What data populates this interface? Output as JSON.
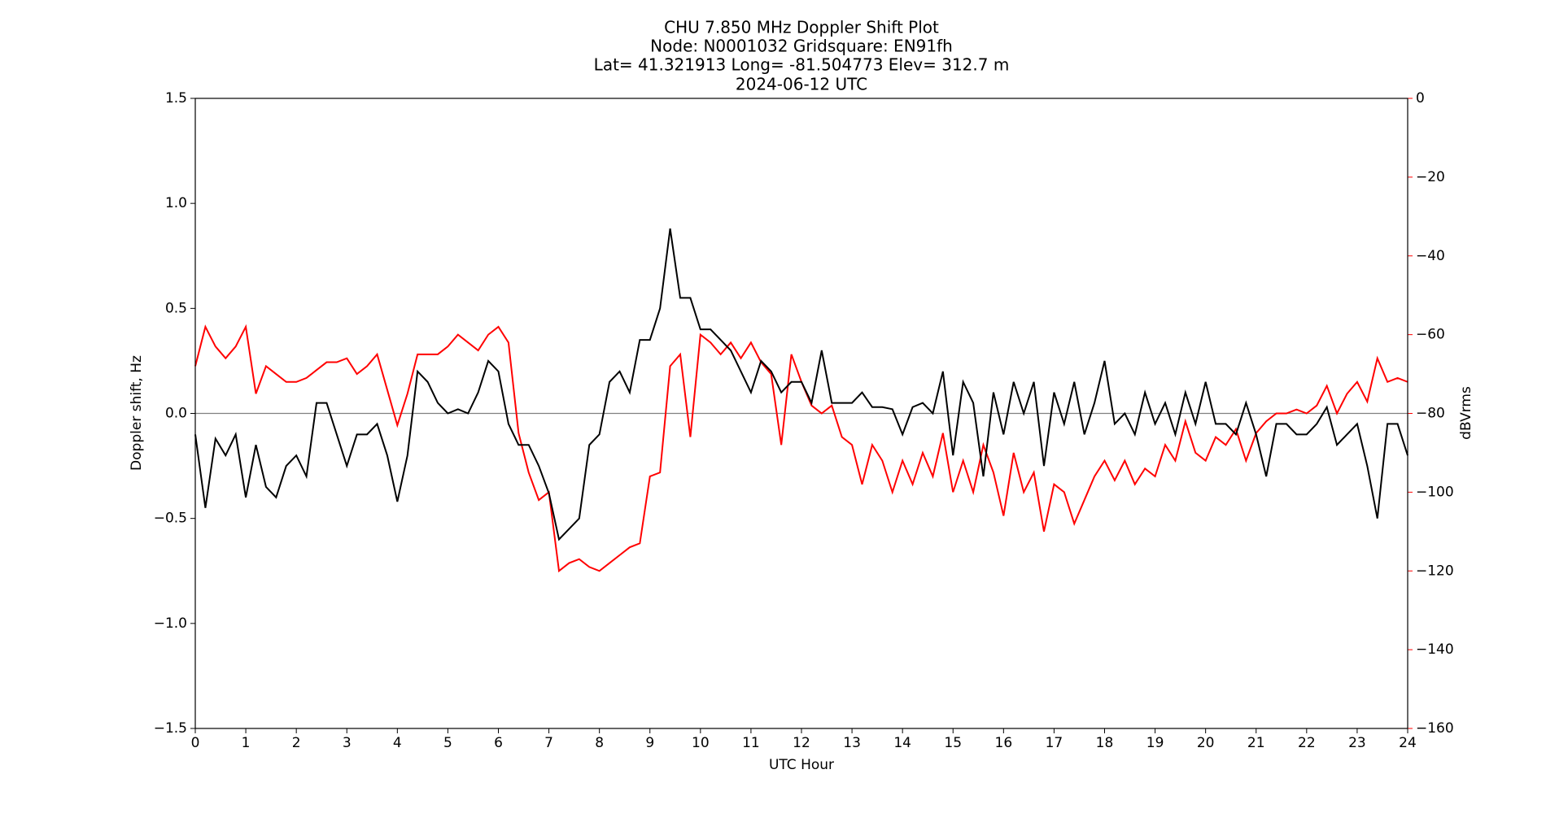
{
  "chart_data": {
    "type": "line",
    "title_lines": [
      "CHU 7.850 MHz Doppler Shift Plot",
      "Node:  N0001032      Gridsquare:  EN91fh",
      "Lat= 41.321913    Long= -81.504773    Elev= 312.7 m",
      "2024-06-12  UTC"
    ],
    "xlabel": "UTC Hour",
    "ylabel": "Doppler shift, Hz",
    "y2label": "dBVrms",
    "x": [
      0,
      0.2,
      0.4,
      0.6,
      0.8,
      1,
      1.2,
      1.4,
      1.6,
      1.8,
      2,
      2.2,
      2.4,
      2.6,
      2.8,
      3,
      3.2,
      3.4,
      3.6,
      3.8,
      4,
      4.2,
      4.4,
      4.6,
      4.8,
      5,
      5.2,
      5.4,
      5.6,
      5.8,
      6,
      6.2,
      6.4,
      6.6,
      6.8,
      7,
      7.2,
      7.4,
      7.6,
      7.8,
      8,
      8.2,
      8.4,
      8.6,
      8.8,
      9,
      9.2,
      9.4,
      9.6,
      9.8,
      10,
      10.2,
      10.4,
      10.6,
      10.8,
      11,
      11.2,
      11.4,
      11.6,
      11.8,
      12,
      12.2,
      12.4,
      12.6,
      12.8,
      13,
      13.2,
      13.4,
      13.6,
      13.8,
      14,
      14.2,
      14.4,
      14.6,
      14.8,
      15,
      15.2,
      15.4,
      15.6,
      15.8,
      16,
      16.2,
      16.4,
      16.6,
      16.8,
      17,
      17.2,
      17.4,
      17.6,
      17.8,
      18,
      18.2,
      18.4,
      18.6,
      18.8,
      19,
      19.2,
      19.4,
      19.6,
      19.8,
      20,
      20.2,
      20.4,
      20.6,
      20.8,
      21,
      21.2,
      21.4,
      21.6,
      21.8,
      22,
      22.2,
      22.4,
      22.6,
      22.8,
      23,
      23.2,
      23.4,
      23.6,
      23.8,
      24
    ],
    "series": [
      {
        "color": "#000000",
        "axis": "y",
        "values": [
          -0.1,
          -0.45,
          -0.12,
          -0.2,
          -0.1,
          -0.4,
          -0.15,
          -0.35,
          -0.4,
          -0.25,
          -0.2,
          -0.3,
          0.05,
          0.05,
          -0.1,
          -0.25,
          -0.1,
          -0.1,
          -0.05,
          -0.2,
          -0.42,
          -0.2,
          0.2,
          0.15,
          0.05,
          0,
          0.02,
          0,
          0.1,
          0.25,
          0.2,
          -0.05,
          -0.15,
          -0.15,
          -0.25,
          -0.38,
          -0.6,
          -0.55,
          -0.5,
          -0.15,
          -0.1,
          0.15,
          0.2,
          0.1,
          0.35,
          0.35,
          0.5,
          0.88,
          0.55,
          0.55,
          0.4,
          0.4,
          0.35,
          0.3,
          0.2,
          0.1,
          0.25,
          0.2,
          0.1,
          0.15,
          0.15,
          0.05,
          0.3,
          0.05,
          0.05,
          0.05,
          0.1,
          0.03,
          0.03,
          0.02,
          -0.1,
          0.03,
          0.05,
          0,
          0.2,
          -0.2,
          0.15,
          0.05,
          -0.3,
          0.1,
          -0.1,
          0.15,
          0,
          0.15,
          -0.25,
          0.1,
          -0.05,
          0.15,
          -0.1,
          0.05,
          0.25,
          -0.05,
          0,
          -0.1,
          0.1,
          -0.05,
          0.05,
          -0.1,
          0.1,
          -0.05,
          0.15,
          -0.05,
          -0.05,
          -0.1,
          0.05,
          -0.1,
          -0.3,
          -0.05,
          -0.05,
          -0.1,
          -0.1,
          -0.05,
          0.03,
          -0.15,
          -0.1,
          -0.05,
          -0.25,
          -0.5,
          -0.05,
          -0.05,
          -0.2
        ]
      },
      {
        "color": "#ff0000",
        "axis": "y2",
        "values": [
          -68,
          -58,
          -63,
          -66,
          -63,
          -58,
          -75,
          -68,
          -70,
          -72,
          -72,
          -71,
          -69,
          -67,
          -67,
          -66,
          -70,
          -68,
          -65,
          -74,
          -83,
          -75,
          -65,
          -65,
          -65,
          -63,
          -60,
          -62,
          -64,
          -60,
          -58,
          -62,
          -85,
          -95,
          -102,
          -100,
          -120,
          -118,
          -117,
          -119,
          -120,
          -118,
          -116,
          -114,
          -113,
          -96,
          -95,
          -68,
          -65,
          -86,
          -60,
          -62,
          -65,
          -62,
          -66,
          -62,
          -67,
          -70,
          -88,
          -65,
          -72,
          -78,
          -80,
          -78,
          -86,
          -88,
          -98,
          -88,
          -92,
          -100,
          -92,
          -98,
          -90,
          -96,
          -85,
          -100,
          -92,
          -100,
          -88,
          -95,
          -106,
          -90,
          -100,
          -95,
          -110,
          -98,
          -100,
          -108,
          -102,
          -96,
          -92,
          -97,
          -92,
          -98,
          -94,
          -96,
          -88,
          -92,
          -82,
          -90,
          -92,
          -86,
          -88,
          -84,
          -92,
          -85,
          -82,
          -80,
          -80,
          -79,
          -80,
          -78,
          -73,
          -80,
          -75,
          -72,
          -77,
          -66,
          -72,
          -71,
          -72
        ]
      }
    ],
    "xlim": [
      0,
      24
    ],
    "xticks": [
      0,
      1,
      2,
      3,
      4,
      5,
      6,
      7,
      8,
      9,
      10,
      11,
      12,
      13,
      14,
      15,
      16,
      17,
      18,
      19,
      20,
      21,
      22,
      23,
      24
    ],
    "ylim": [
      -1.5,
      1.5
    ],
    "yticks": [
      {
        "value": -1.5,
        "label": "−1.5"
      },
      {
        "value": -1,
        "label": "−1.0"
      },
      {
        "value": -0.5,
        "label": "−0.5"
      },
      {
        "value": 0,
        "label": "0.0"
      },
      {
        "value": 0.5,
        "label": "0.5"
      },
      {
        "value": 1,
        "label": "1.0"
      },
      {
        "value": 1.5,
        "label": "1.5"
      }
    ],
    "y2lim": [
      -160,
      0
    ],
    "y2ticks": [
      {
        "value": -160,
        "label": "−160"
      },
      {
        "value": -140,
        "label": "−140"
      },
      {
        "value": -120,
        "label": "−120"
      },
      {
        "value": -100,
        "label": "−100"
      },
      {
        "value": -80,
        "label": "−80"
      },
      {
        "value": -60,
        "label": "−60"
      },
      {
        "value": -40,
        "label": "−40"
      },
      {
        "value": -20,
        "label": "−20"
      },
      0
    ],
    "y2color": "#ff0000",
    "hline": {
      "y": 0,
      "color": "#808080"
    }
  }
}
